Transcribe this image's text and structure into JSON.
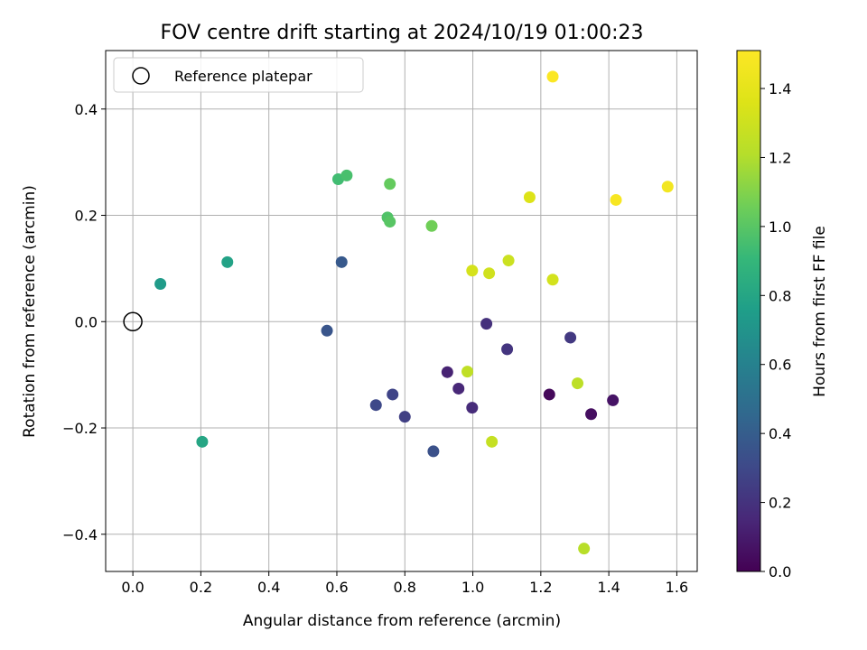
{
  "chart_data": {
    "type": "scatter",
    "title": "FOV centre drift starting at 2024/10/19 01:00:23",
    "xlabel": "Angular distance from reference (arcmin)",
    "ylabel": "Rotation from reference (arcmin)",
    "xlim": [
      -0.08,
      1.66
    ],
    "ylim": [
      -0.47,
      0.51
    ],
    "xticks": [
      0.0,
      0.2,
      0.4,
      0.6,
      0.8,
      1.0,
      1.2,
      1.4,
      1.6
    ],
    "xtick_labels": [
      "0.0",
      "0.2",
      "0.4",
      "0.6",
      "0.8",
      "1.0",
      "1.2",
      "1.4",
      "1.6"
    ],
    "yticks": [
      -0.4,
      -0.2,
      0.0,
      0.2,
      0.4
    ],
    "ytick_labels": [
      "−0.4",
      "−0.2",
      "0.0",
      "0.2",
      "0.4"
    ],
    "grid": true,
    "legend": {
      "placement": "upper-left",
      "entries": [
        "Reference platepar"
      ]
    },
    "reference_point": {
      "x": 0.0,
      "y": 0.0,
      "label": "Reference platepar"
    },
    "colorbar": {
      "label": "Hours from first FF file",
      "colormap": "viridis",
      "range": [
        0.0,
        1.51
      ],
      "ticks": [
        0.0,
        0.2,
        0.4,
        0.6,
        0.8,
        1.0,
        1.2,
        1.4
      ],
      "tick_labels": [
        "0.0",
        "0.2",
        "0.4",
        "0.6",
        "0.8",
        "1.0",
        "1.2",
        "1.4"
      ]
    },
    "points": [
      {
        "x": 1.225,
        "y": -0.137,
        "c": 0.03
      },
      {
        "x": 1.348,
        "y": -0.174,
        "c": 0.05
      },
      {
        "x": 1.412,
        "y": -0.148,
        "c": 0.07
      },
      {
        "x": 0.925,
        "y": -0.095,
        "c": 0.13
      },
      {
        "x": 0.958,
        "y": -0.126,
        "c": 0.15
      },
      {
        "x": 0.998,
        "y": -0.162,
        "c": 0.17
      },
      {
        "x": 1.04,
        "y": -0.004,
        "c": 0.19
      },
      {
        "x": 1.101,
        "y": -0.052,
        "c": 0.21
      },
      {
        "x": 1.287,
        "y": -0.03,
        "c": 0.23
      },
      {
        "x": 0.8,
        "y": -0.179,
        "c": 0.26
      },
      {
        "x": 0.764,
        "y": -0.137,
        "c": 0.28
      },
      {
        "x": 0.715,
        "y": -0.157,
        "c": 0.3
      },
      {
        "x": 0.884,
        "y": -0.244,
        "c": 0.34
      },
      {
        "x": 0.571,
        "y": -0.017,
        "c": 0.36
      },
      {
        "x": 0.614,
        "y": 0.112,
        "c": 0.38
      },
      {
        "x": 0.204,
        "y": -0.226,
        "c": 0.8
      },
      {
        "x": 0.278,
        "y": 0.112,
        "c": 0.78
      },
      {
        "x": 0.081,
        "y": 0.071,
        "c": 0.74
      },
      {
        "x": 0.604,
        "y": 0.268,
        "c": 0.94
      },
      {
        "x": 0.629,
        "y": 0.275,
        "c": 0.96
      },
      {
        "x": 0.749,
        "y": 0.196,
        "c": 0.98
      },
      {
        "x": 0.756,
        "y": 0.188,
        "c": 1.0
      },
      {
        "x": 0.756,
        "y": 0.259,
        "c": 1.03
      },
      {
        "x": 0.879,
        "y": 0.18,
        "c": 1.06
      },
      {
        "x": 0.984,
        "y": -0.094,
        "c": 1.25
      },
      {
        "x": 1.056,
        "y": -0.226,
        "c": 1.27
      },
      {
        "x": 1.308,
        "y": -0.116,
        "c": 1.24
      },
      {
        "x": 1.327,
        "y": -0.427,
        "c": 1.22
      },
      {
        "x": 0.998,
        "y": 0.096,
        "c": 1.33
      },
      {
        "x": 1.048,
        "y": 0.091,
        "c": 1.31
      },
      {
        "x": 1.105,
        "y": 0.115,
        "c": 1.29
      },
      {
        "x": 1.235,
        "y": 0.079,
        "c": 1.32
      },
      {
        "x": 1.167,
        "y": 0.234,
        "c": 1.36
      },
      {
        "x": 1.235,
        "y": 0.461,
        "c": 1.5
      },
      {
        "x": 1.421,
        "y": 0.229,
        "c": 1.48
      },
      {
        "x": 1.573,
        "y": 0.254,
        "c": 1.46
      }
    ]
  }
}
